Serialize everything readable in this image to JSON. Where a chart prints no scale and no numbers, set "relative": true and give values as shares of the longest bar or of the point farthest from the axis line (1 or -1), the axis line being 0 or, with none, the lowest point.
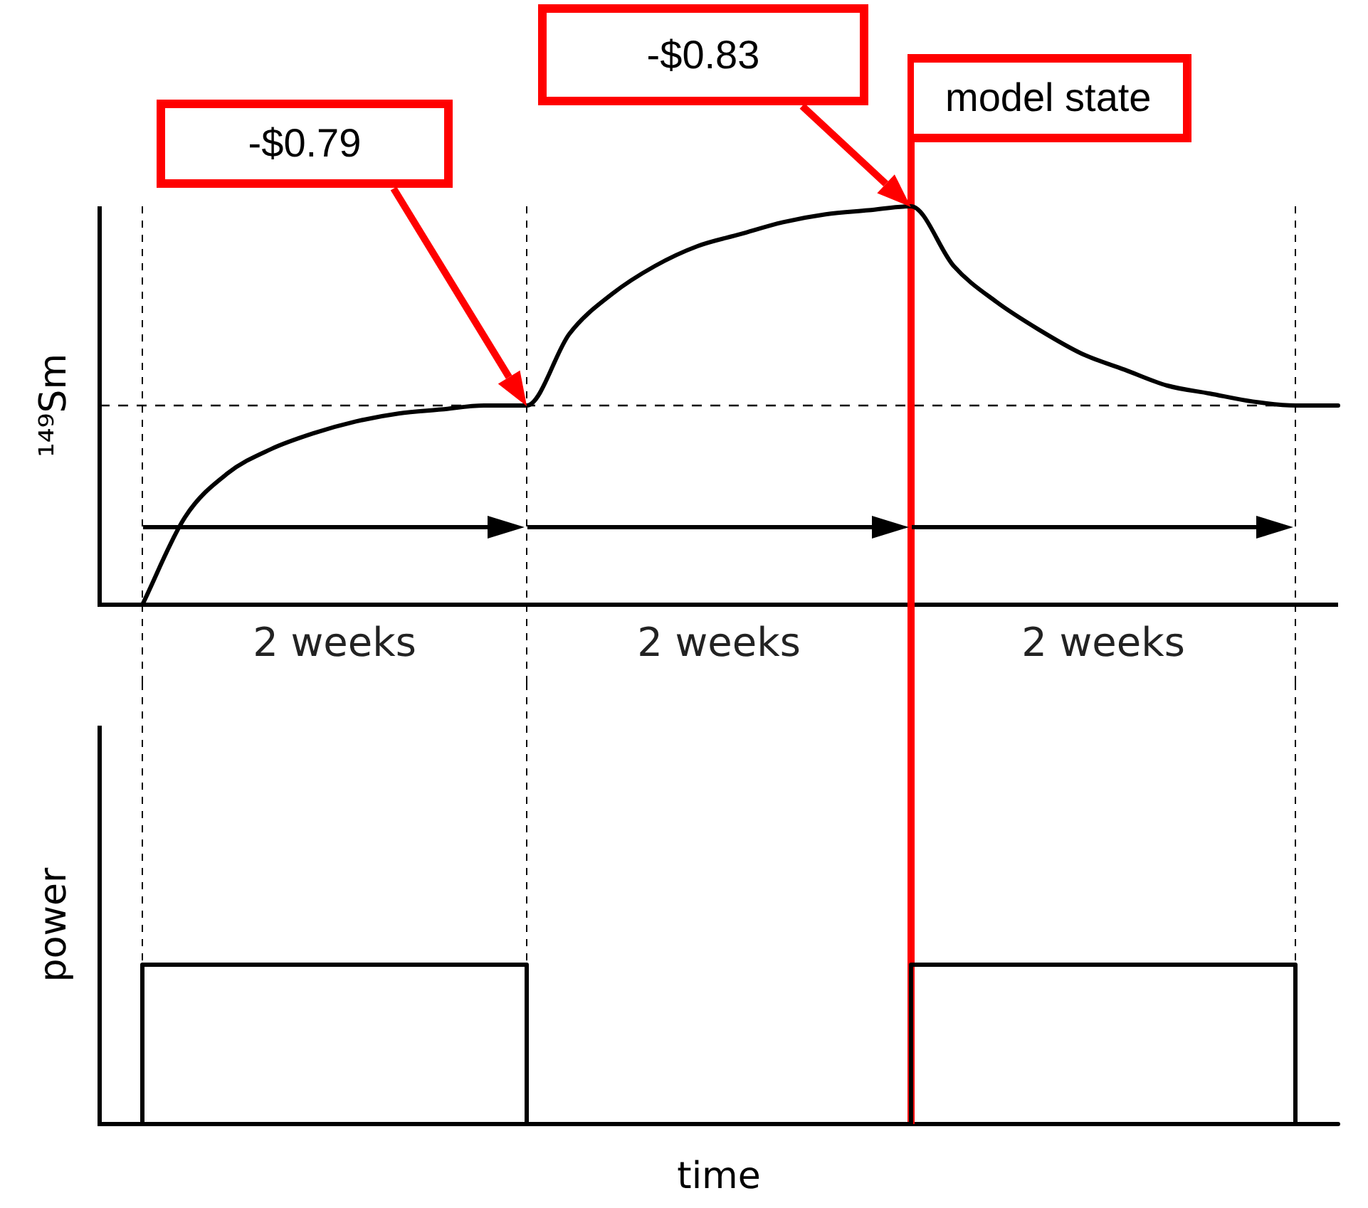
{
  "chart_data": [
    {
      "type": "line",
      "ylabel": "¹⁴⁹Sm",
      "relative": true,
      "marker": "none",
      "categories": [
        null,
        null,
        null,
        null,
        null,
        null,
        null,
        null,
        null,
        null,
        null,
        null,
        null,
        null,
        null,
        null,
        null,
        null,
        null,
        null,
        null,
        null,
        null,
        null,
        null,
        null,
        null,
        null,
        null,
        null
      ],
      "series": [
        {
          "color": "#000000",
          "values": [
            null,
            0,
            0.22,
            0.33,
            0.39,
            0.43,
            0.46,
            0.48,
            0.49,
            0.5,
            0.5,
            0.68,
            0.78,
            0.85,
            0.9,
            0.93,
            0.96,
            0.98,
            0.99,
            1,
            0.85,
            0.76,
            0.69,
            0.63,
            0.59,
            0.55,
            0.53,
            0.51,
            0.5,
            0.5
          ]
        }
      ],
      "ref_lines": [
        {
          "axis": "y",
          "value": 0.5,
          "line_style": "dashed",
          "color": "#000000"
        },
        {
          "axis": "x",
          "label": "model state",
          "color": "#ff0000"
        }
      ],
      "grid": "x",
      "annotations": [
        "-$0.79",
        "-$0.83",
        "2 weeks",
        "2 weeks",
        "2 weeks"
      ]
    },
    {
      "type": "step",
      "grid": "x",
      "ylabel": "power",
      "xlabel": "time",
      "relative": true,
      "marker": "none",
      "categories": [
        null,
        null,
        null,
        null,
        null,
        null,
        null,
        null,
        null,
        null,
        null,
        null,
        null,
        null,
        null,
        null,
        null,
        null,
        null,
        null,
        null,
        null,
        null,
        null,
        null,
        null,
        null,
        null,
        null,
        null
      ],
      "series": [
        {
          "color": "#000000",
          "values": [
            0,
            1,
            1,
            1,
            1,
            1,
            1,
            1,
            1,
            1,
            0,
            0,
            0,
            0,
            0,
            0,
            0,
            0,
            0,
            1,
            1,
            1,
            1,
            1,
            1,
            1,
            1,
            1,
            0,
            0
          ]
        }
      ]
    }
  ]
}
